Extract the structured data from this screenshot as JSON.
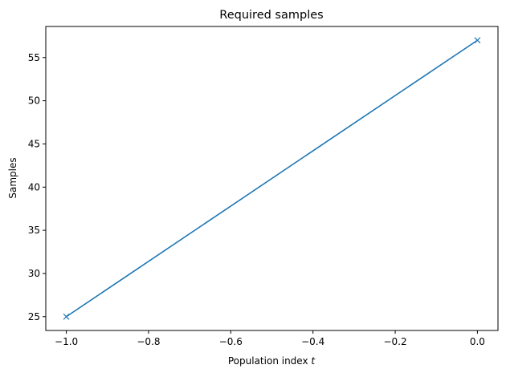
{
  "chart_data": {
    "type": "line",
    "title": "Required samples",
    "xlabel": "Population index",
    "xlabel_var": "t",
    "ylabel": "Samples",
    "x": [
      -1.0,
      0.0
    ],
    "series": [
      {
        "values": [
          25,
          57
        ],
        "color": "#1f77b4",
        "marker": "x"
      }
    ],
    "xlim": [
      -1.05,
      0.05
    ],
    "ylim": [
      23.4,
      58.6
    ],
    "xticks": [
      -1.0,
      -0.8,
      -0.6,
      -0.4,
      -0.2,
      0.0
    ],
    "xtick_labels": [
      "−1.0",
      "−0.8",
      "−0.6",
      "−0.4",
      "−0.2",
      "0.0"
    ],
    "yticks": [
      25,
      30,
      35,
      40,
      45,
      50,
      55
    ],
    "ytick_labels": [
      "25",
      "30",
      "35",
      "40",
      "45",
      "50",
      "55"
    ],
    "grid": false,
    "legend": "none"
  }
}
